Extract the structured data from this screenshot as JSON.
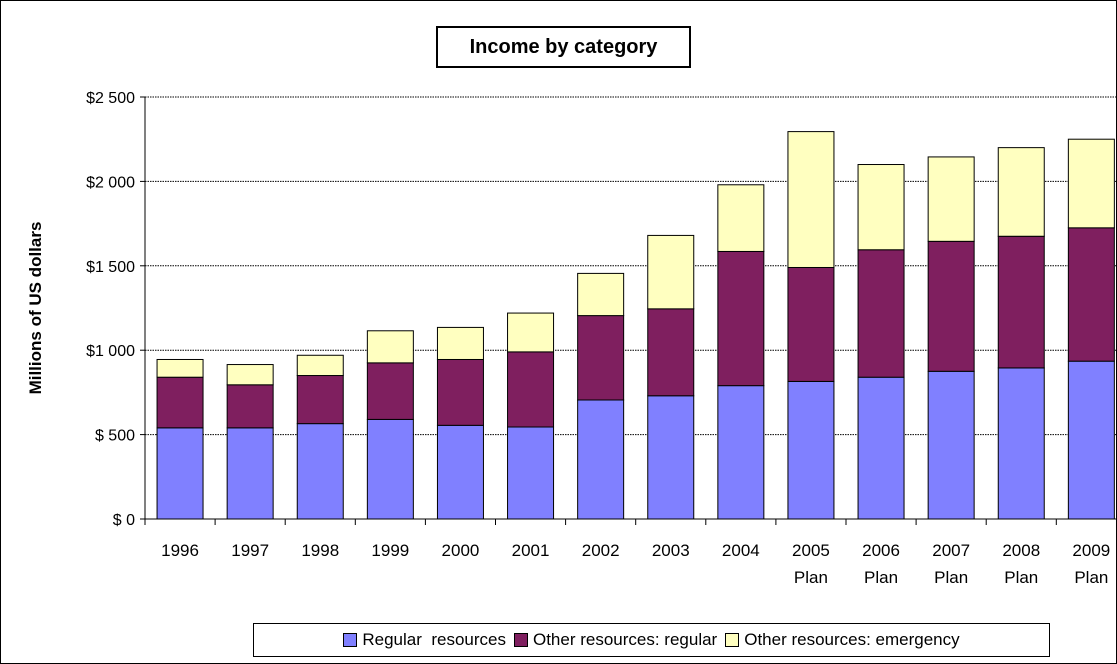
{
  "colors": {
    "regular_resources": "#8080ff",
    "other_regular": "#7f1f5f",
    "other_emergency": "#ffffc0",
    "outline": "#000000"
  },
  "chart_data": {
    "type": "bar",
    "stacked": true,
    "title": "Income by category",
    "xlabel": "",
    "ylabel": "Millions of US dollars",
    "ylim": [
      0,
      2500
    ],
    "yticks": [
      0,
      500,
      1000,
      1500,
      2000,
      2500
    ],
    "ytick_labels": [
      "$ 0",
      "$ 500",
      "$1 000",
      "$1 500",
      "$2 000",
      "$2 500"
    ],
    "grid": "horizontal dotted",
    "legend_position": "bottom",
    "categories": [
      [
        "1996",
        ""
      ],
      [
        "1997",
        ""
      ],
      [
        "1998",
        ""
      ],
      [
        "1999",
        ""
      ],
      [
        "2000",
        ""
      ],
      [
        "2001",
        ""
      ],
      [
        "2002",
        ""
      ],
      [
        "2003",
        ""
      ],
      [
        "2004",
        ""
      ],
      [
        "2005",
        "Plan"
      ],
      [
        "2006",
        "Plan"
      ],
      [
        "2007",
        "Plan"
      ],
      [
        "2008",
        "Plan"
      ],
      [
        "2009",
        "Plan"
      ]
    ],
    "series": [
      {
        "name": "Regular  resources",
        "color": "#8080ff",
        "values": [
          540,
          540,
          565,
          590,
          555,
          545,
          705,
          730,
          790,
          815,
          840,
          875,
          895,
          935
        ]
      },
      {
        "name": "Other resources: regular",
        "color": "#7f1f5f",
        "values": [
          300,
          255,
          285,
          335,
          390,
          445,
          500,
          515,
          795,
          675,
          755,
          770,
          780,
          790
        ]
      },
      {
        "name": "Other resources: emergency",
        "color": "#ffffc0",
        "values": [
          105,
          120,
          120,
          190,
          190,
          230,
          250,
          435,
          395,
          805,
          505,
          500,
          525,
          525
        ]
      }
    ]
  }
}
